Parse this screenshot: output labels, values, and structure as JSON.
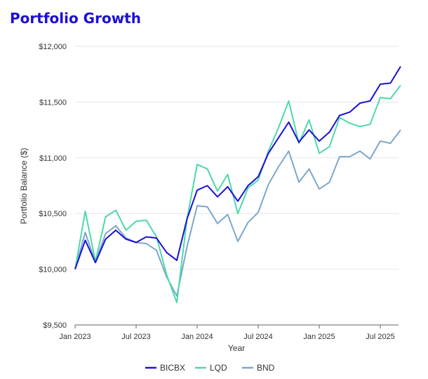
{
  "chart_data": {
    "type": "line",
    "title": "Portfolio Growth",
    "xlabel": "Year",
    "ylabel": "Portfolio Balance ($)",
    "ylim": [
      9500,
      12000
    ],
    "y_ticks": [
      {
        "value": 9500,
        "label": "$9,500"
      },
      {
        "value": 10000,
        "label": "$10,000"
      },
      {
        "value": 10500,
        "label": "$10,500"
      },
      {
        "value": 11000,
        "label": "$11,000"
      },
      {
        "value": 11500,
        "label": "$11,500"
      },
      {
        "value": 12000,
        "label": "$12,000"
      }
    ],
    "x_ticks": [
      {
        "value": "2023-01",
        "label": "Jan 2023"
      },
      {
        "value": "2023-07",
        "label": "Jul 2023"
      },
      {
        "value": "2024-01",
        "label": "Jan 2024"
      },
      {
        "value": "2024-07",
        "label": "Jul 2024"
      },
      {
        "value": "2025-01",
        "label": "Jan 2025"
      },
      {
        "value": "2025-07",
        "label": "Jul 2025"
      }
    ],
    "x": [
      "2023-01",
      "2023-02",
      "2023-03",
      "2023-04",
      "2023-05",
      "2023-06",
      "2023-07",
      "2023-08",
      "2023-09",
      "2023-10",
      "2023-11",
      "2023-12",
      "2024-01",
      "2024-02",
      "2024-03",
      "2024-04",
      "2024-05",
      "2024-06",
      "2024-07",
      "2024-08",
      "2024-09",
      "2024-10",
      "2024-11",
      "2024-12",
      "2025-01",
      "2025-02",
      "2025-03",
      "2025-04",
      "2025-05",
      "2025-06",
      "2025-07",
      "2025-08",
      "2025-09"
    ],
    "grid": true,
    "legend_position": "bottom",
    "series": [
      {
        "name": "BICBX",
        "color": "#1c0fd6",
        "values": [
          10000,
          10260,
          10060,
          10270,
          10350,
          10270,
          10240,
          10290,
          10280,
          10150,
          10080,
          10450,
          10710,
          10750,
          10650,
          10740,
          10610,
          10750,
          10830,
          11040,
          11180,
          11320,
          11140,
          11250,
          11150,
          11230,
          11380,
          11410,
          11490,
          11510,
          11660,
          11670,
          11820
        ]
      },
      {
        "name": "LQD",
        "color": "#4dd9a8",
        "values": [
          10000,
          10520,
          10070,
          10470,
          10530,
          10350,
          10430,
          10440,
          10290,
          9950,
          9700,
          10450,
          10940,
          10900,
          10700,
          10850,
          10500,
          10730,
          10800,
          11060,
          11270,
          11510,
          11130,
          11340,
          11040,
          11100,
          11360,
          11310,
          11280,
          11300,
          11540,
          11530,
          11650
        ]
      },
      {
        "name": "BND",
        "color": "#7ea6ca",
        "values": [
          10000,
          10330,
          10060,
          10320,
          10390,
          10280,
          10240,
          10230,
          10170,
          9930,
          9760,
          10200,
          10570,
          10560,
          10410,
          10490,
          10250,
          10420,
          10510,
          10760,
          10920,
          11060,
          10780,
          10900,
          10720,
          10780,
          11010,
          11010,
          11060,
          10990,
          11150,
          11130,
          11250
        ]
      }
    ]
  }
}
